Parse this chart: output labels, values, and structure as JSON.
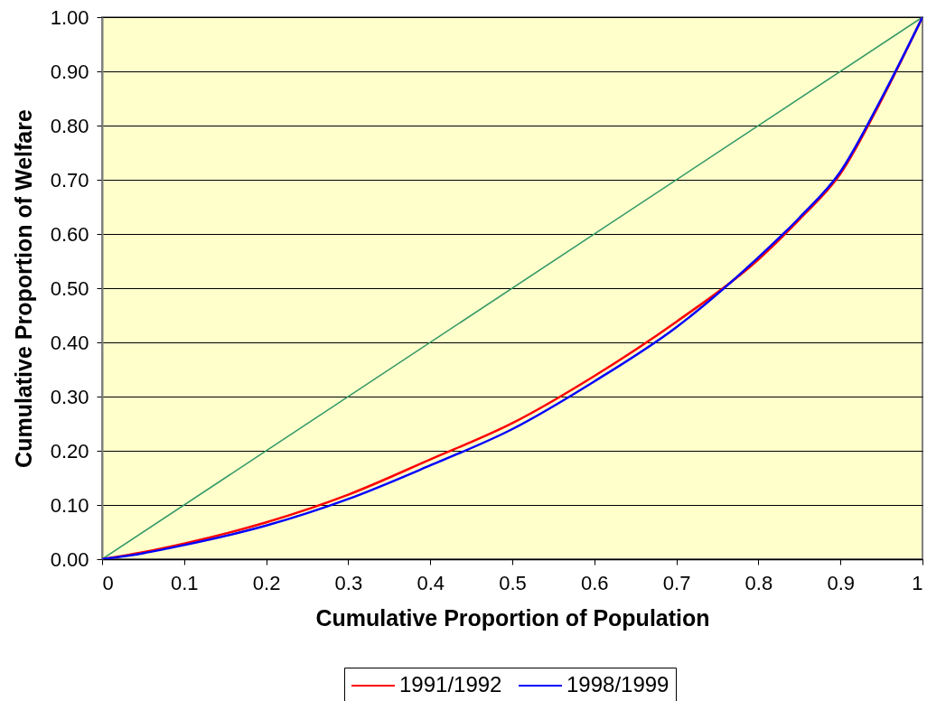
{
  "chart_data": {
    "type": "line",
    "xlabel": "Cumulative Proportion of Population",
    "ylabel": "Cumulative Proportion of Welfare",
    "xlim": [
      0,
      1
    ],
    "ylim": [
      0,
      1
    ],
    "xticks": [
      0,
      0.1,
      0.2,
      0.3,
      0.4,
      0.5,
      0.6,
      0.7,
      0.8,
      0.9,
      1
    ],
    "yticks": [
      {
        "value": 0,
        "label": "0.00"
      },
      {
        "value": 0.1,
        "label": "0.10"
      },
      {
        "value": 0.2,
        "label": "0.20"
      },
      {
        "value": 0.3,
        "label": "0.30"
      },
      {
        "value": 0.4,
        "label": "0.40"
      },
      {
        "value": 0.5,
        "label": "0.50"
      },
      {
        "value": 0.6,
        "label": "0.60"
      },
      {
        "value": 0.7,
        "label": "0.70"
      },
      {
        "value": 0.8,
        "label": "0.80"
      },
      {
        "value": 0.9,
        "label": "0.90"
      },
      {
        "value": 1,
        "label": "1.00"
      }
    ],
    "grid": "y",
    "legend": "bottom",
    "series": [
      {
        "color": "#339966",
        "x": [
          0,
          1
        ],
        "values": [
          0,
          1
        ]
      },
      {
        "name": "1991/1992",
        "color": "#ff0000",
        "x": [
          0,
          0.05,
          0.1,
          0.2,
          0.3,
          0.4,
          0.5,
          0.6,
          0.7,
          0.8,
          0.85,
          0.9,
          0.95,
          1
        ],
        "values": [
          0,
          0.013,
          0.029,
          0.068,
          0.119,
          0.184,
          0.251,
          0.338,
          0.438,
          0.553,
          0.627,
          0.711,
          0.847,
          1
        ]
      },
      {
        "name": "1998/1999",
        "color": "#0000ff",
        "x": [
          0,
          0.05,
          0.1,
          0.2,
          0.3,
          0.4,
          0.5,
          0.6,
          0.7,
          0.8,
          0.85,
          0.9,
          0.95,
          1
        ],
        "values": [
          0,
          0.011,
          0.026,
          0.062,
          0.111,
          0.173,
          0.24,
          0.328,
          0.428,
          0.557,
          0.63,
          0.715,
          0.85,
          1
        ]
      }
    ]
  }
}
